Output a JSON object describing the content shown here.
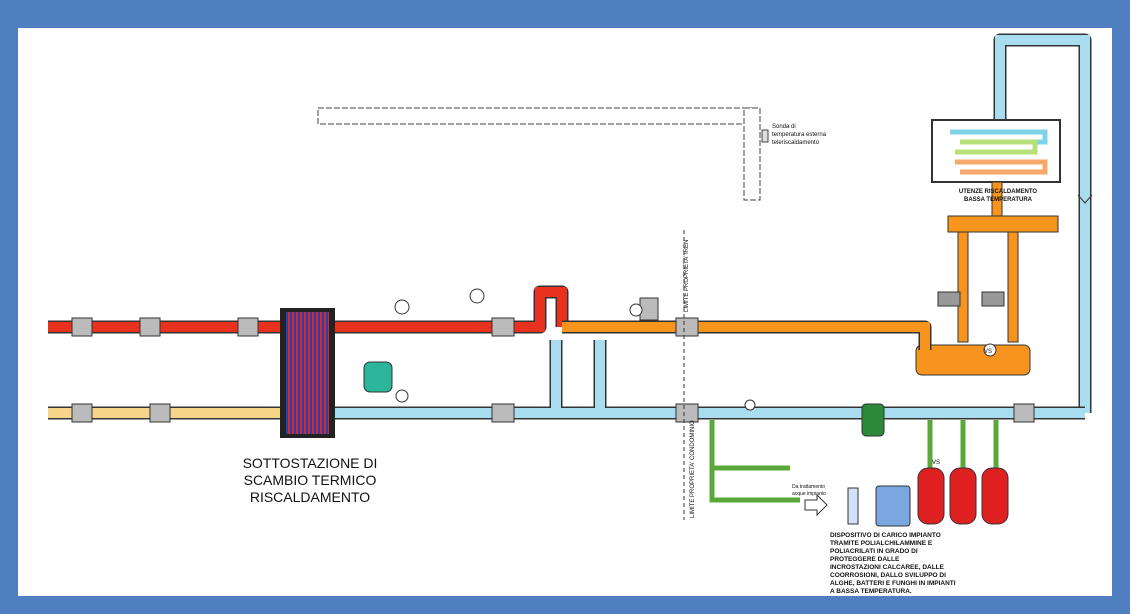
{
  "sensor_label": [
    "Sonda di",
    "temperatura esterna",
    "teleriscaldamento"
  ],
  "utenze_label": [
    "UTENZE RISCALDAMENTO",
    "BASSA TEMPERATURA"
  ],
  "limit_iren": "LIMITE PROPRIETA' IREN",
  "limit_condominio": "LIMITE PROPRIETA' CONDOMINIO",
  "substation_label": [
    "SOTTOSTAZIONE DI",
    "SCAMBIO TERMICO",
    "RISCALDAMENTO"
  ],
  "water_treatment_label": [
    "Da trattamento",
    "acque impianto"
  ],
  "vs_labels": [
    "VS",
    "VS"
  ],
  "device_label": [
    "DISPOSITIVO DI CARICO IMPIANTO",
    "TRAMITE POLIALCHILAMMINE E",
    "POLIACRILATI IN GRADO DI",
    "PROTEGGERE DALLE",
    "INCROSTAZIONI CALCAREE, DALLE",
    "COORROSIONI, DALLO SVILUPPO DI",
    "ALGHE, BATTERI E FUNGHI IN IMPIANTI",
    "A BASSA TEMPERATURA."
  ]
}
